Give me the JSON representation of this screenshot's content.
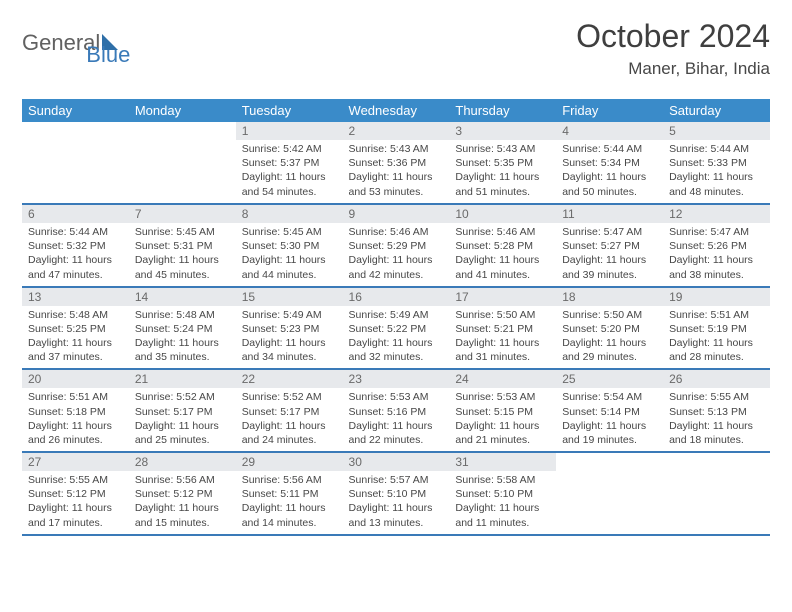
{
  "logo": {
    "word1": "General",
    "word2": "Blue"
  },
  "title": "October 2024",
  "location": "Maner, Bihar, India",
  "day_headers": [
    "Sunday",
    "Monday",
    "Tuesday",
    "Wednesday",
    "Thursday",
    "Friday",
    "Saturday"
  ],
  "colors": {
    "header_bg": "#3a8bc9",
    "header_fg": "#ffffff",
    "daynum_bg": "#e7e9ec",
    "daynum_fg": "#6a6a6a",
    "row_border": "#3a7ab8",
    "body_text": "#474747",
    "title_fg": "#3f3f3f",
    "logo_gray": "#616161",
    "logo_blue": "#3a7ab8",
    "background": "#ffffff"
  },
  "fonts": {
    "title_size_pt": 24,
    "location_size_pt": 13,
    "day_header_size_pt": 10,
    "daynum_size_pt": 9,
    "body_size_pt": 8
  },
  "weeks": [
    [
      null,
      null,
      {
        "n": "1",
        "sunrise": "5:42 AM",
        "sunset": "5:37 PM",
        "dl": "11 hours and 54 minutes."
      },
      {
        "n": "2",
        "sunrise": "5:43 AM",
        "sunset": "5:36 PM",
        "dl": "11 hours and 53 minutes."
      },
      {
        "n": "3",
        "sunrise": "5:43 AM",
        "sunset": "5:35 PM",
        "dl": "11 hours and 51 minutes."
      },
      {
        "n": "4",
        "sunrise": "5:44 AM",
        "sunset": "5:34 PM",
        "dl": "11 hours and 50 minutes."
      },
      {
        "n": "5",
        "sunrise": "5:44 AM",
        "sunset": "5:33 PM",
        "dl": "11 hours and 48 minutes."
      }
    ],
    [
      {
        "n": "6",
        "sunrise": "5:44 AM",
        "sunset": "5:32 PM",
        "dl": "11 hours and 47 minutes."
      },
      {
        "n": "7",
        "sunrise": "5:45 AM",
        "sunset": "5:31 PM",
        "dl": "11 hours and 45 minutes."
      },
      {
        "n": "8",
        "sunrise": "5:45 AM",
        "sunset": "5:30 PM",
        "dl": "11 hours and 44 minutes."
      },
      {
        "n": "9",
        "sunrise": "5:46 AM",
        "sunset": "5:29 PM",
        "dl": "11 hours and 42 minutes."
      },
      {
        "n": "10",
        "sunrise": "5:46 AM",
        "sunset": "5:28 PM",
        "dl": "11 hours and 41 minutes."
      },
      {
        "n": "11",
        "sunrise": "5:47 AM",
        "sunset": "5:27 PM",
        "dl": "11 hours and 39 minutes."
      },
      {
        "n": "12",
        "sunrise": "5:47 AM",
        "sunset": "5:26 PM",
        "dl": "11 hours and 38 minutes."
      }
    ],
    [
      {
        "n": "13",
        "sunrise": "5:48 AM",
        "sunset": "5:25 PM",
        "dl": "11 hours and 37 minutes."
      },
      {
        "n": "14",
        "sunrise": "5:48 AM",
        "sunset": "5:24 PM",
        "dl": "11 hours and 35 minutes."
      },
      {
        "n": "15",
        "sunrise": "5:49 AM",
        "sunset": "5:23 PM",
        "dl": "11 hours and 34 minutes."
      },
      {
        "n": "16",
        "sunrise": "5:49 AM",
        "sunset": "5:22 PM",
        "dl": "11 hours and 32 minutes."
      },
      {
        "n": "17",
        "sunrise": "5:50 AM",
        "sunset": "5:21 PM",
        "dl": "11 hours and 31 minutes."
      },
      {
        "n": "18",
        "sunrise": "5:50 AM",
        "sunset": "5:20 PM",
        "dl": "11 hours and 29 minutes."
      },
      {
        "n": "19",
        "sunrise": "5:51 AM",
        "sunset": "5:19 PM",
        "dl": "11 hours and 28 minutes."
      }
    ],
    [
      {
        "n": "20",
        "sunrise": "5:51 AM",
        "sunset": "5:18 PM",
        "dl": "11 hours and 26 minutes."
      },
      {
        "n": "21",
        "sunrise": "5:52 AM",
        "sunset": "5:17 PM",
        "dl": "11 hours and 25 minutes."
      },
      {
        "n": "22",
        "sunrise": "5:52 AM",
        "sunset": "5:17 PM",
        "dl": "11 hours and 24 minutes."
      },
      {
        "n": "23",
        "sunrise": "5:53 AM",
        "sunset": "5:16 PM",
        "dl": "11 hours and 22 minutes."
      },
      {
        "n": "24",
        "sunrise": "5:53 AM",
        "sunset": "5:15 PM",
        "dl": "11 hours and 21 minutes."
      },
      {
        "n": "25",
        "sunrise": "5:54 AM",
        "sunset": "5:14 PM",
        "dl": "11 hours and 19 minutes."
      },
      {
        "n": "26",
        "sunrise": "5:55 AM",
        "sunset": "5:13 PM",
        "dl": "11 hours and 18 minutes."
      }
    ],
    [
      {
        "n": "27",
        "sunrise": "5:55 AM",
        "sunset": "5:12 PM",
        "dl": "11 hours and 17 minutes."
      },
      {
        "n": "28",
        "sunrise": "5:56 AM",
        "sunset": "5:12 PM",
        "dl": "11 hours and 15 minutes."
      },
      {
        "n": "29",
        "sunrise": "5:56 AM",
        "sunset": "5:11 PM",
        "dl": "11 hours and 14 minutes."
      },
      {
        "n": "30",
        "sunrise": "5:57 AM",
        "sunset": "5:10 PM",
        "dl": "11 hours and 13 minutes."
      },
      {
        "n": "31",
        "sunrise": "5:58 AM",
        "sunset": "5:10 PM",
        "dl": "11 hours and 11 minutes."
      },
      null,
      null
    ]
  ],
  "labels": {
    "sunrise_prefix": "Sunrise: ",
    "sunset_prefix": "Sunset: ",
    "daylight_prefix": "Daylight: "
  }
}
